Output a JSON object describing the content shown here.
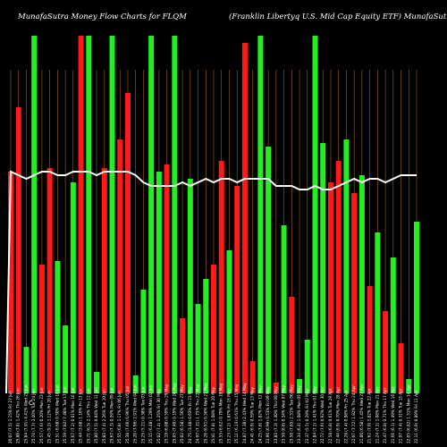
{
  "header": {
    "left": "MunafaSutra  Money Flow  Charts for FLQM",
    "right": "(Franklin  Libertyq U.S. Mid Cap Equity ETF) MunafaSutra.com"
  },
  "axis_symbol": "C",
  "chart_data": {
    "type": "bar",
    "title": "MunafaSutra  Money Flow  Charts for FLQM",
    "subtitle": "(Franklin  Libertyq U.S. Mid Cap Equity ETF) MunafaSutra.com",
    "ylim": [
      0,
      100
    ],
    "grid": true,
    "colors": {
      "up": "#22ee22",
      "down": "#ff1a1a",
      "line": "#ffffff",
      "grid": "#a0641e"
    },
    "categories": [
      "Fri 27 Jun",
      "Thu 26 Jun",
      "Wed 25 Jun",
      "Tue 24 Jun",
      "Mon 23 Jun",
      "Fri 20 Jun",
      "Wed 18 Jun",
      "Tue 17 Jun",
      "Mon 16 Jun",
      "Fri 13 Jun",
      "Thu 12 Jun",
      "Wed 11 Jun",
      "Tue 10 Jun",
      "Mon 09 Jun",
      "Fri 06 Jun",
      "Thu 05 Jun",
      "Wed 04 Jun",
      "Tue 03 Jun",
      "Mon 02 Jun",
      "Fri 30 May",
      "Thu 29 May",
      "Wed 28 May",
      "Tue 27 May",
      "Fri 23 May",
      "Thu 22 May",
      "Wed 21 May",
      "Tue 20 May",
      "Mon 19 May",
      "Fri 16 May",
      "Thu 15 May",
      "Wed 14 May",
      "Tue 13 May",
      "Mon 12 May",
      "Fri 09 May",
      "Thu 08 May",
      "Wed 07 May",
      "Tue 06 May",
      "Mon 05 May",
      "Fri 02 May",
      "Thu 01 May",
      "Wed 30 Apr",
      "Tue 29 Apr",
      "Mon 28 Apr",
      "Fri 25 Apr",
      "Thu 24 Apr",
      "Wed 23 Apr",
      "Tue 22 Apr",
      "Mon 21 Apr",
      "Thu 17 Apr",
      "Wed 16 Apr",
      "Tue 15 Apr",
      "Mon 14 Apr",
      "Fri 11 Apr"
    ],
    "x_tick_labels": [
      "26.07 (7.5) 1.15%",
      "25.88 (7.8) 1.42%",
      "25.84 (7.91) 4.41%",
      "25.74 (7.7) 3.40%",
      "25.57 (7.6) 0.20%",
      "25.45 (9.2) 1.12%",
      "25.51 (6.68) 0.50%",
      "25.59 (7.82) 7.48%",
      "25.67 (7.2) 0.01%",
      "25.44 (3.68) 1.16%",
      "25.71 (6.3) 2.14%",
      "25.80 (7.5) 0.84%",
      "25.83 (7.4) 2.26%",
      "25.67 (7.3) 0.59%",
      "25.55 (6.8) 1.17%",
      "25.38 (7.66) 0.96%",
      "25.28 (7.96) 2.91%",
      "25.25 (5.21) 0.38%",
      "25.15 (6.48) 1.29%",
      "25.02 (7.4) 1.25%",
      "25.19 (6.08) 0.59%",
      "25.05 (7.40) 0.19%",
      "25.02 (6.58) 1.56%",
      "24.75 (3.48) 0.63%",
      "24.97 (7.11) 1.75%",
      "25.26 (6.91) 0.56%",
      "25.41 (7.8) 1.08%",
      "25.53 (6.62) 0.79%",
      "25.23 (7.2) 1.87%",
      "25.11 (6.13) 0.61%",
      "24.87 (7.38) 2.43%",
      "24.41 (6.9) 0.59%",
      "24.25 (7.8) 1.82%",
      "23.96 (6.99) 0.53%",
      "23.83 (7.3) 1.40%",
      "23.50 (6.8) 0.34%",
      "23.58 (7.85) 2.51%",
      "23.34 (6.4) 1.08%",
      "23.37 (5.5) 0.29%",
      "22.84 (7.2) 1.41%",
      "22.72 (7.6) 0.92%",
      "22.58 (6.8) 0.61%",
      "22.44 (6.9) 0.70%",
      "22.28 (7.4) 0.98%",
      "22.07 (7.72) 1.82%",
      "21.86 (6.58) 1.45%",
      "21.62 (7.9) 1.82%",
      "21.24 (7.2) 1.08%",
      "21.47 (6.8) 0.71%",
      "21.66 (6.1) 1.49%",
      "21.97 (7.4) 0.31%",
      "22.05 (6.82) 1.51%",
      "22.11 (6.9) 0.89%"
    ],
    "series": [
      {
        "values": [
          62,
          80,
          13,
          100,
          36,
          63,
          37,
          19,
          59,
          100,
          100,
          6,
          63,
          100,
          71,
          84,
          5,
          29,
          100,
          62,
          64,
          100,
          21,
          60,
          25,
          32,
          36,
          65,
          40,
          58,
          98,
          9,
          100,
          69,
          3,
          47,
          27,
          4,
          15,
          100,
          70,
          59,
          65,
          71,
          56,
          61,
          30,
          45,
          23,
          38,
          14,
          4,
          48
        ],
        "directions": [
          "down",
          "down",
          "up",
          "up",
          "down",
          "down",
          "up",
          "up",
          "up",
          "down",
          "up",
          "up",
          "down",
          "up",
          "down",
          "down",
          "up",
          "up",
          "up",
          "up",
          "down",
          "up",
          "down",
          "up",
          "up",
          "up",
          "down",
          "down",
          "up",
          "down",
          "down",
          "down",
          "up",
          "up",
          "down",
          "up",
          "down",
          "up",
          "up",
          "up",
          "up",
          "down",
          "down",
          "up",
          "down",
          "up",
          "down",
          "up",
          "down",
          "up",
          "down",
          "up",
          "up"
        ]
      }
    ],
    "line": [
      62,
      61,
      60,
      61,
      62,
      62,
      61,
      61,
      62,
      62,
      62,
      61,
      62,
      62,
      62,
      62,
      61,
      59,
      58,
      58,
      58,
      58,
      59,
      58,
      59,
      60,
      59,
      60,
      60,
      59,
      60,
      60,
      60,
      60,
      58,
      58,
      58,
      57,
      57,
      58,
      57,
      57,
      58,
      59,
      60,
      59,
      60,
      60,
      59,
      60,
      61,
      61,
      61
    ]
  }
}
